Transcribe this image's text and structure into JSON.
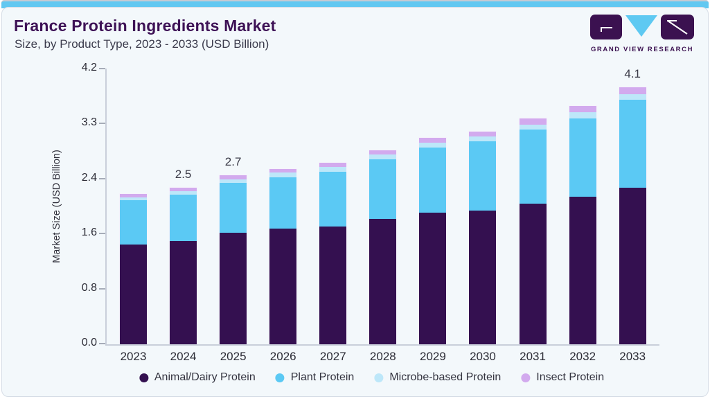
{
  "page": {
    "background": "#f3f8fb",
    "top_strip_color": "#62c8f1",
    "panel_border_color": "#d6dde6"
  },
  "header": {
    "title": "France Protein Ingredients Market",
    "subtitle": "Size, by Product Type, 2023 - 2033 (USD Billion)",
    "brand": "GRAND VIEW RESEARCH",
    "title_color": "#3e1256",
    "logo_purple": "#3b1150",
    "logo_blue": "#5ec9f2"
  },
  "chart_data": {
    "type": "bar",
    "stacked": true,
    "title": "France Protein Ingredients Market Size, by Product Type, 2023 - 2033 (USD Billion)",
    "xlabel": "",
    "ylabel": "Market Size (USD Billion)",
    "ylim": [
      0,
      4.2
    ],
    "y_ticks": [
      "0.0",
      "0.8",
      "1.6",
      "2.4",
      "3.3",
      "4.2"
    ],
    "grid": false,
    "legend_position": "bottom",
    "categories": [
      "2023",
      "2024",
      "2025",
      "2026",
      "2027",
      "2028",
      "2029",
      "2030",
      "2031",
      "2032",
      "2033"
    ],
    "series": [
      {
        "name": "Animal/Dairy Protein",
        "color": "#341050",
        "values": [
          1.6,
          1.65,
          1.78,
          1.85,
          1.88,
          2.0,
          2.1,
          2.14,
          2.25,
          2.35,
          2.5
        ]
      },
      {
        "name": "Plant Protein",
        "color": "#5bc9f4",
        "values": [
          0.7,
          0.74,
          0.8,
          0.82,
          0.88,
          0.95,
          1.04,
          1.1,
          1.18,
          1.26,
          1.4
        ]
      },
      {
        "name": "Microbe-based Protein",
        "color": "#bde7f9",
        "values": [
          0.05,
          0.06,
          0.06,
          0.07,
          0.07,
          0.08,
          0.08,
          0.08,
          0.08,
          0.09,
          0.09
        ]
      },
      {
        "name": "Insect Protein",
        "color": "#d2aaee",
        "values": [
          0.05,
          0.05,
          0.06,
          0.06,
          0.07,
          0.07,
          0.08,
          0.08,
          0.09,
          0.1,
          0.11
        ]
      }
    ],
    "totals": [
      2.4,
      2.5,
      2.7,
      2.8,
      2.9,
      3.1,
      3.3,
      3.4,
      3.6,
      3.8,
      4.1
    ],
    "bar_labels": [
      "",
      "2.5",
      "2.7",
      "",
      "",
      "",
      "",
      "",
      "",
      "",
      "4.1"
    ]
  }
}
